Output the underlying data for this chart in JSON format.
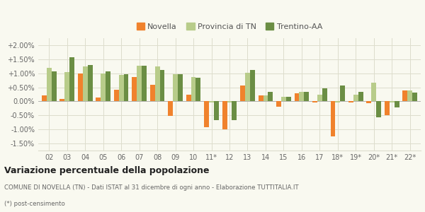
{
  "categories": [
    "02",
    "03",
    "04",
    "05",
    "06",
    "07",
    "08",
    "09",
    "10",
    "11*",
    "12",
    "13",
    "14",
    "15",
    "16",
    "17",
    "18*",
    "19*",
    "20*",
    "21*",
    "22*"
  ],
  "novella": [
    0.0022,
    0.0008,
    0.01,
    0.0013,
    0.0042,
    0.0087,
    0.0058,
    -0.0052,
    0.0025,
    -0.0093,
    -0.01,
    0.0057,
    0.002,
    -0.0018,
    0.003,
    -0.0005,
    -0.0125,
    -0.0003,
    -0.0007,
    -0.005,
    0.004
  ],
  "provincia_tn": [
    0.012,
    0.0105,
    0.0125,
    0.01,
    0.0093,
    0.0127,
    0.0125,
    0.0097,
    0.0087,
    -0.0003,
    -0.0005,
    0.0102,
    0.0022,
    0.0017,
    0.0033,
    0.0025,
    -0.0003,
    0.0025,
    0.0067,
    -0.0003,
    0.0038
  ],
  "trentino_aa": [
    0.0107,
    0.0158,
    0.013,
    0.0108,
    0.0097,
    0.0128,
    0.0112,
    0.0097,
    0.0085,
    -0.0067,
    -0.0068,
    0.0113,
    0.0035,
    0.0015,
    0.0035,
    0.0047,
    0.0057,
    0.0035,
    -0.0057,
    -0.0022,
    0.0032
  ],
  "color_novella": "#f0822d",
  "color_provincia": "#b8cc8a",
  "color_trentino": "#6b8e44",
  "title1": "Variazione percentuale della popolazione",
  "title2": "COMUNE DI NOVELLA (TN) - Dati ISTAT al 31 dicembre di ogni anno - Elaborazione TUTTITALIA.IT",
  "title3": "(*) post-censimento",
  "legend_labels": [
    "Novella",
    "Provincia di TN",
    "Trentino-AA"
  ],
  "ylim": [
    -0.0175,
    0.0225
  ],
  "yticks": [
    -0.015,
    -0.01,
    -0.005,
    0.0,
    0.005,
    0.01,
    0.015,
    0.02
  ],
  "ytick_labels": [
    "-1.50%",
    "-1.00%",
    "-0.50%",
    "0.00%",
    "+0.50%",
    "+1.00%",
    "+1.50%",
    "+2.00%"
  ],
  "background_color": "#f9f9f0",
  "grid_color": "#ddddcc"
}
